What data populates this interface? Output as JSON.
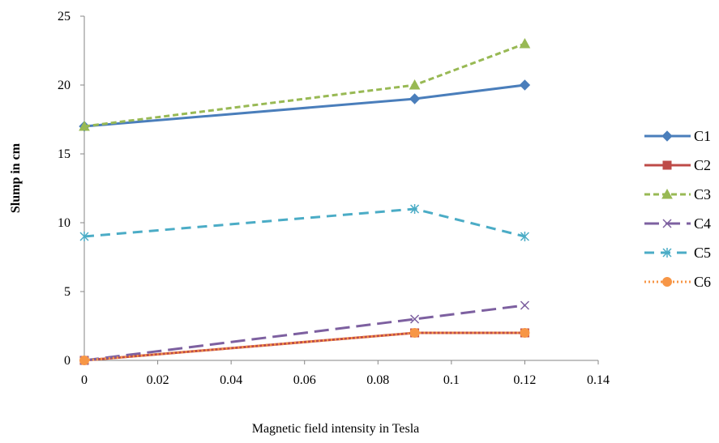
{
  "chart_data": {
    "type": "line",
    "xlabel": "Magnetic field intensity in Tesla",
    "ylabel": "Slump in cm",
    "xlim": [
      0,
      0.14
    ],
    "ylim": [
      0,
      25
    ],
    "x_ticks": [
      "0",
      "0.02",
      "0.04",
      "0.06",
      "0.08",
      "0.1",
      "0.12",
      "0.14"
    ],
    "y_ticks": [
      "0",
      "5",
      "10",
      "15",
      "20",
      "25"
    ],
    "grid": false,
    "legend": "right",
    "series": [
      {
        "name": "C1",
        "x": [
          0,
          0.09,
          0.12
        ],
        "values": [
          17,
          19,
          20
        ],
        "color": "#4A7EBB",
        "marker": "diamond",
        "dash": "solid"
      },
      {
        "name": "C2",
        "x": [
          0,
          0.09,
          0.12
        ],
        "values": [
          0,
          2,
          2
        ],
        "color": "#BE4B48",
        "marker": "square",
        "dash": "solid"
      },
      {
        "name": "C3",
        "x": [
          0,
          0.09,
          0.12
        ],
        "values": [
          17,
          20,
          23
        ],
        "color": "#98B954",
        "marker": "triangle",
        "dash": "short-dash"
      },
      {
        "name": "C4",
        "x": [
          0,
          0.09,
          0.12
        ],
        "values": [
          0,
          3,
          4
        ],
        "color": "#7D60A0",
        "marker": "x",
        "dash": "long-dash"
      },
      {
        "name": "C5",
        "x": [
          0,
          0.09,
          0.12
        ],
        "values": [
          9,
          11,
          9
        ],
        "color": "#4BACC6",
        "marker": "star",
        "dash": "dash"
      },
      {
        "name": "C6",
        "x": [
          0,
          0.09,
          0.12
        ],
        "values": [
          0,
          2,
          2
        ],
        "color": "#F79646",
        "marker": "circle",
        "dash": "dot"
      }
    ]
  }
}
